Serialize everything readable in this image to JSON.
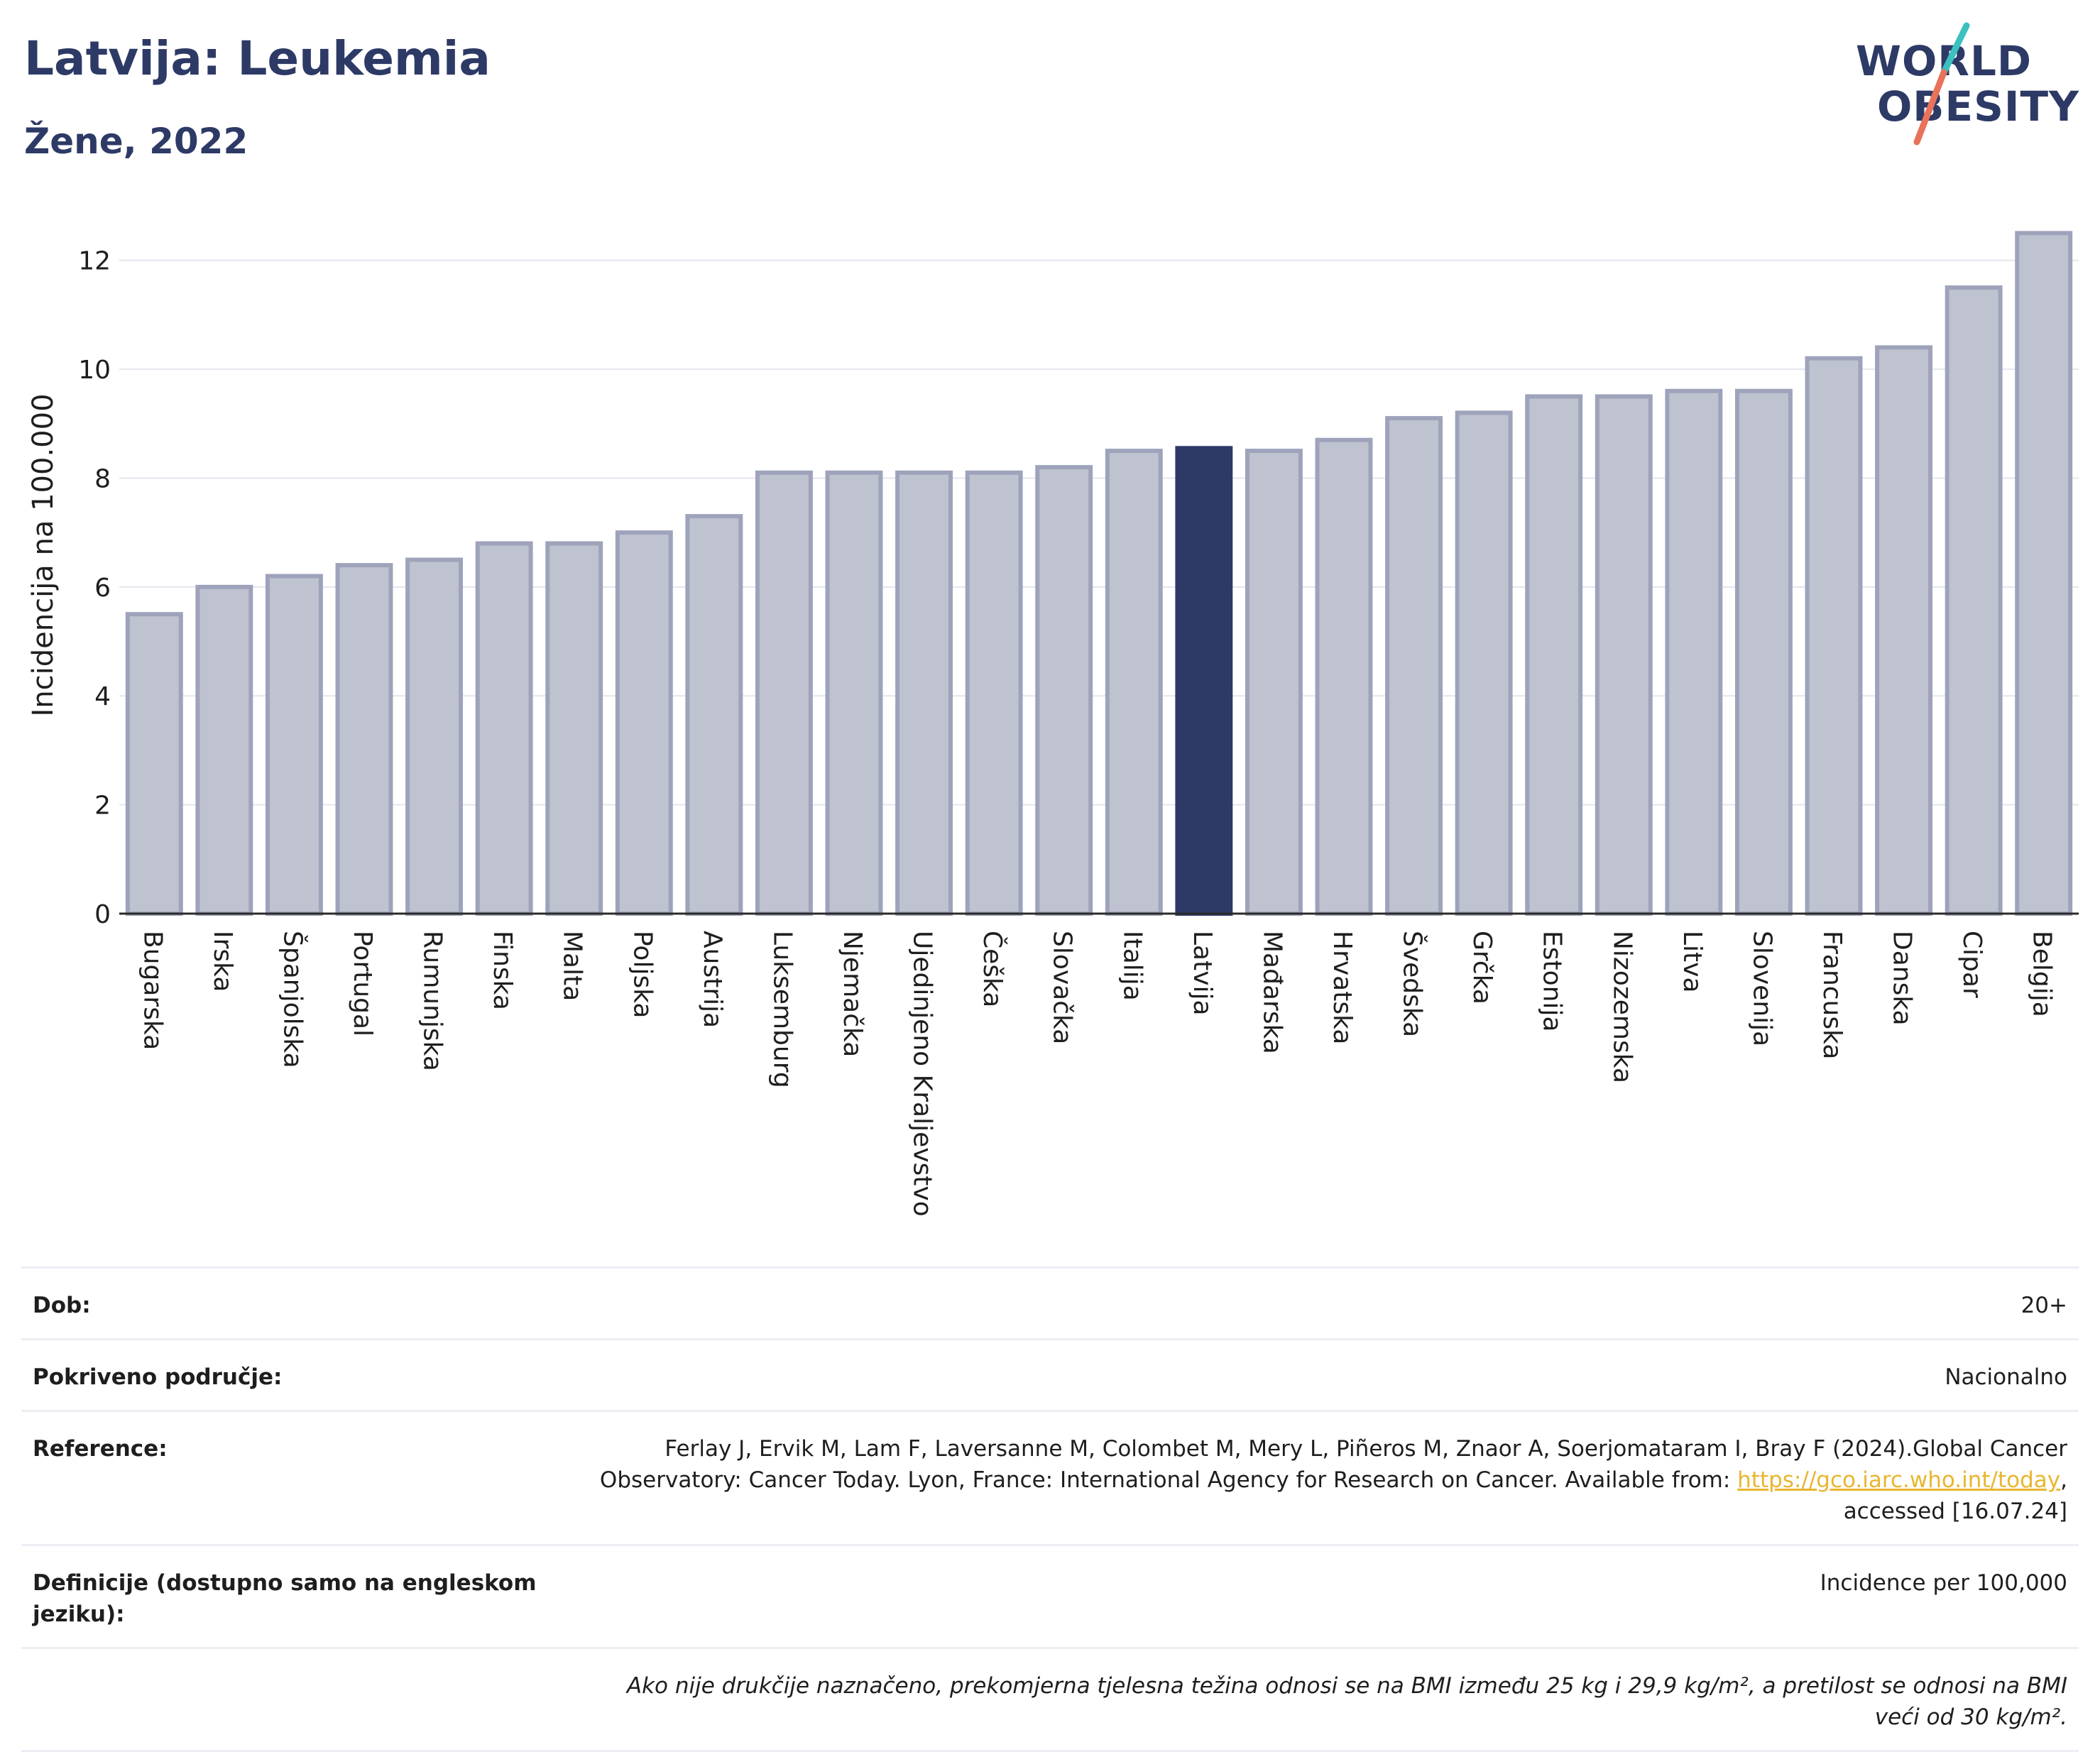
{
  "title": "Latvija: Leukemia",
  "subtitle": "Žene, 2022",
  "logo": {
    "line1": "WORLD",
    "line2": "OBESITY",
    "accent_teal": "#3cc1c0",
    "accent_coral": "#e8735a"
  },
  "chart_data": {
    "type": "bar",
    "title": "Latvija: Leukemia",
    "subtitle": "Žene, 2022",
    "ylabel": "Incidencija na 100.000",
    "ylim": [
      0,
      13
    ],
    "yticks": [
      0,
      2,
      4,
      6,
      8,
      10,
      12
    ],
    "grid": true,
    "highlight": "Latvija",
    "colors": {
      "bar": "#bfc2cf",
      "bar_border": "#9ea3bb",
      "highlight": "#2d3a66"
    },
    "categories": [
      "Bugarska",
      "Irska",
      "Španjolska",
      "Portugal",
      "Rumunjska",
      "Finska",
      "Malta",
      "Poljska",
      "Austrija",
      "Luksemburg",
      "Njemačka",
      "Ujedinjeno Kraljevstvo",
      "Češka",
      "Slovačka",
      "Italija",
      "Latvija",
      "Mađarska",
      "Hrvatska",
      "Švedska",
      "Grčka",
      "Estonija",
      "Nizozemska",
      "Litva",
      "Slovenija",
      "Francuska",
      "Danska",
      "Cipar",
      "Belgija"
    ],
    "values": [
      5.5,
      6.0,
      6.2,
      6.4,
      6.5,
      6.8,
      6.8,
      7.0,
      7.3,
      8.1,
      8.1,
      8.1,
      8.1,
      8.2,
      8.5,
      8.55,
      8.5,
      8.7,
      9.1,
      9.2,
      9.5,
      9.5,
      9.6,
      9.6,
      10.2,
      10.4,
      11.5,
      12.5
    ]
  },
  "info": {
    "age_label": "Dob:",
    "age_value": "20+",
    "coverage_label": "Pokriveno područje:",
    "coverage_value": "Nacionalno",
    "reference_label": "Reference:",
    "reference_text_1": "Ferlay J, Ervik M, Lam F, Laversanne M, Colombet M, Mery L, Piñeros M, Znaor A, Soerjomataram I, Bray F (2024).Global Cancer Observatory: Cancer Today. Lyon, France: International Agency for Research on Cancer. Available from: ",
    "reference_link": "https://gco.iarc.who.int/today",
    "reference_text_2": ", accessed [16.07.24]",
    "definitions_label": "Definicije (dostupno samo na engleskom jeziku):",
    "definitions_value": "Incidence per 100,000",
    "note": "Ako nije drukčije naznačeno, prekomjerna tjelesna težina odnosi se na BMI između 25 kg i 29,9 kg/m², a pretilost se odnosi na BMI veći od 30 kg/m²."
  }
}
